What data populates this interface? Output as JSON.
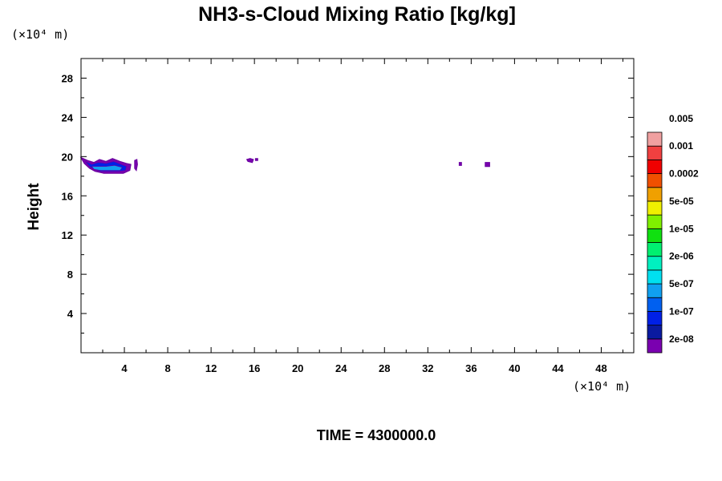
{
  "chart_data": {
    "type": "heatmap",
    "title": "NH3-s-Cloud Mixing Ratio [kg/kg]",
    "ylabel": "Height",
    "y_unit": "(×10⁴ m)",
    "x_unit": "(×10⁴ m)",
    "xlim": [
      0,
      51
    ],
    "ylim": [
      0,
      30
    ],
    "x_ticks": [
      4,
      8,
      12,
      16,
      20,
      24,
      28,
      32,
      36,
      40,
      44,
      48
    ],
    "y_ticks": [
      4,
      8,
      12,
      16,
      20,
      24,
      28
    ],
    "x_minor_step": 2,
    "y_minor_step": 2,
    "time_label": "TIME = 4300000.0",
    "colorbar": {
      "colors": [
        "#7a00b0",
        "#0a1aa0",
        "#0020e6",
        "#0060f0",
        "#10a0f0",
        "#00e0f0",
        "#00f0c0",
        "#00f070",
        "#10e010",
        "#80f000",
        "#f0f000",
        "#f0a000",
        "#f05000",
        "#f00000",
        "#f04040",
        "#f0a0a0"
      ],
      "labels": [
        "2e-08",
        "1e-07",
        "5e-07",
        "2e-06",
        "1e-05",
        "5e-05",
        "0.0002",
        "0.001",
        "0.005"
      ]
    },
    "cloud_regions": [
      {
        "name": "main-cloud-outer",
        "level": "2e-08",
        "polygon": [
          [
            0.0,
            19.9
          ],
          [
            0.6,
            19.6
          ],
          [
            1.2,
            19.4
          ],
          [
            1.7,
            19.7
          ],
          [
            2.3,
            19.5
          ],
          [
            2.9,
            19.8
          ],
          [
            3.6,
            19.5
          ],
          [
            4.2,
            19.3
          ],
          [
            4.6,
            19.2
          ],
          [
            4.5,
            18.6
          ],
          [
            3.9,
            18.3
          ],
          [
            3.0,
            18.3
          ],
          [
            2.1,
            18.3
          ],
          [
            1.3,
            18.5
          ],
          [
            0.8,
            18.8
          ],
          [
            0.3,
            19.3
          ]
        ]
      },
      {
        "name": "main-cloud-mid",
        "level": "1e-07",
        "polygon": [
          [
            0.4,
            19.5
          ],
          [
            1.0,
            19.2
          ],
          [
            1.6,
            19.4
          ],
          [
            2.3,
            19.3
          ],
          [
            3.0,
            19.5
          ],
          [
            3.7,
            19.2
          ],
          [
            4.2,
            19.0
          ],
          [
            4.1,
            18.6
          ],
          [
            3.5,
            18.5
          ],
          [
            2.6,
            18.5
          ],
          [
            1.8,
            18.5
          ],
          [
            1.2,
            18.7
          ],
          [
            0.8,
            19.0
          ]
        ]
      },
      {
        "name": "main-cloud-core",
        "level": "5e-07",
        "polygon": [
          [
            1.0,
            19.0
          ],
          [
            1.6,
            19.0
          ],
          [
            2.3,
            19.0
          ],
          [
            3.1,
            19.1
          ],
          [
            3.8,
            18.9
          ],
          [
            3.6,
            18.6
          ],
          [
            2.7,
            18.6
          ],
          [
            1.8,
            18.6
          ],
          [
            1.2,
            18.7
          ]
        ]
      },
      {
        "name": "small-cloud-a",
        "level": "2e-08",
        "polygon": [
          [
            4.95,
            19.6
          ],
          [
            5.15,
            19.7
          ],
          [
            5.2,
            19.2
          ],
          [
            5.1,
            18.6
          ],
          [
            4.95,
            18.8
          ]
        ]
      },
      {
        "name": "small-cloud-b",
        "level": "2e-08",
        "polygon": [
          [
            15.3,
            19.7
          ],
          [
            15.6,
            19.8
          ],
          [
            15.9,
            19.7
          ],
          [
            15.8,
            19.4
          ],
          [
            15.4,
            19.5
          ]
        ]
      },
      {
        "name": "small-cloud-c",
        "level": "2e-08",
        "polygon": [
          [
            16.1,
            19.8
          ],
          [
            16.3,
            19.8
          ],
          [
            16.3,
            19.6
          ],
          [
            16.1,
            19.6
          ]
        ]
      },
      {
        "name": "small-cloud-d",
        "level": "2e-08",
        "polygon": [
          [
            34.9,
            19.4
          ],
          [
            35.1,
            19.4
          ],
          [
            35.1,
            19.1
          ],
          [
            34.9,
            19.1
          ]
        ]
      },
      {
        "name": "small-cloud-e",
        "level": "2e-08",
        "polygon": [
          [
            37.3,
            19.4
          ],
          [
            37.7,
            19.4
          ],
          [
            37.7,
            19.0
          ],
          [
            37.3,
            19.0
          ]
        ]
      }
    ]
  }
}
